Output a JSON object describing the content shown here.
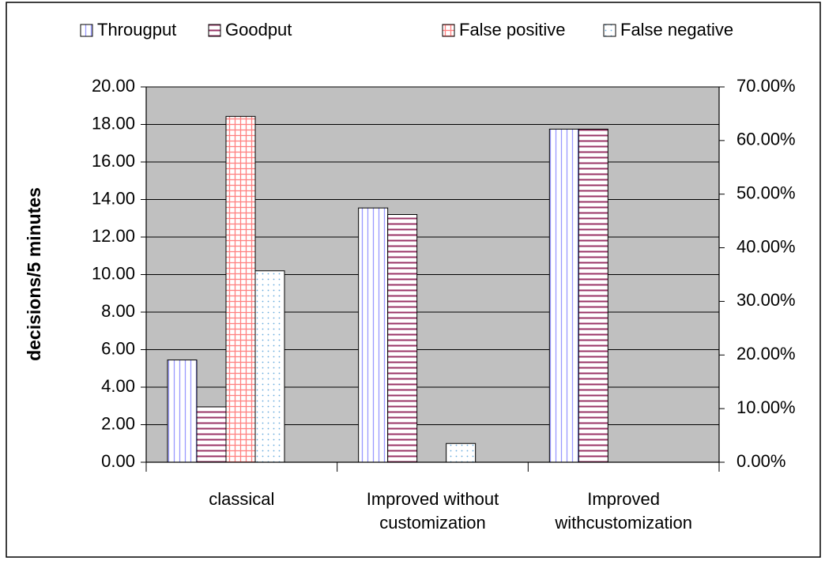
{
  "chart_data": {
    "type": "bar",
    "categories": [
      "classical",
      "Improved without customization",
      "Improved withcustomization"
    ],
    "y_label": "decisions/5 minutes",
    "ylim": [
      0,
      20
    ],
    "yticks": [
      {
        "value": 0,
        "label": "0.00"
      },
      {
        "value": 2,
        "label": "2.00"
      },
      {
        "value": 4,
        "label": "4.00"
      },
      {
        "value": 6,
        "label": "6.00"
      },
      {
        "value": 8,
        "label": "8.00"
      },
      {
        "value": 10,
        "label": "10.00"
      },
      {
        "value": 12,
        "label": "12.00"
      },
      {
        "value": 14,
        "label": "14.00"
      },
      {
        "value": 16,
        "label": "16.00"
      },
      {
        "value": 18,
        "label": "18.00"
      },
      {
        "value": 20,
        "label": "20.00"
      }
    ],
    "y2lim": [
      0,
      70
    ],
    "y2ticks": [
      {
        "value": 0,
        "label": "0.00%"
      },
      {
        "value": 10,
        "label": "10.00%"
      },
      {
        "value": 20,
        "label": "20.00%"
      },
      {
        "value": 30,
        "label": "30.00%"
      },
      {
        "value": 40,
        "label": "40.00%"
      },
      {
        "value": 50,
        "label": "50.00%"
      },
      {
        "value": 60,
        "label": "60.00%"
      },
      {
        "value": 70,
        "label": "70.00%"
      }
    ],
    "grid": true,
    "legend": "top",
    "series": [
      {
        "name": "Througput",
        "color": "#9999ff",
        "pattern": "vertical",
        "values": [
          5.45,
          13.55,
          17.75
        ]
      },
      {
        "name": "Goodput",
        "color": "#993366",
        "pattern": "horizontal",
        "values": [
          2.95,
          13.2,
          17.75
        ]
      },
      {
        "name": "False positive",
        "color": "#ff8080",
        "pattern": "grid",
        "axis": "y2",
        "values": [
          64.5,
          0,
          0
        ]
      },
      {
        "name": "False negative",
        "color": "#66aadd",
        "pattern": "dots",
        "axis": "y2",
        "values": [
          35.7,
          3.5,
          0
        ]
      }
    ]
  }
}
